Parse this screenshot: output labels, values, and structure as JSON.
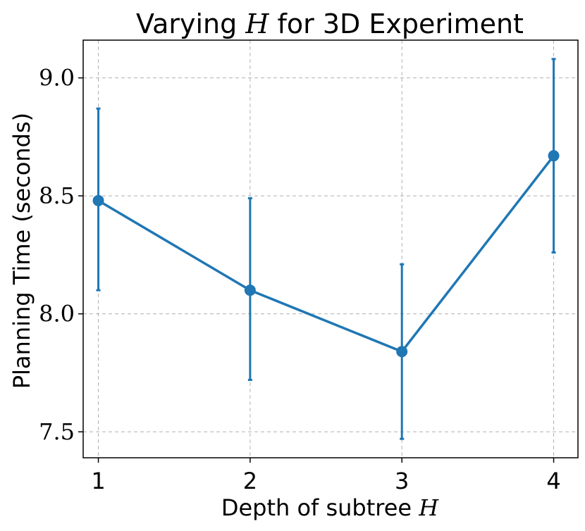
{
  "chart_data": {
    "type": "line",
    "title_prefix": "Varying ",
    "title_var": "H",
    "title_suffix": " for 3D Experiment",
    "xlabel_prefix": "Depth of subtree ",
    "xlabel_var": "H",
    "ylabel": "Planning Time (seconds)",
    "x": [
      1,
      2,
      3,
      4
    ],
    "xtick_labels": [
      "1",
      "2",
      "3",
      "4"
    ],
    "xlim": [
      0.9,
      4.16
    ],
    "ylim": [
      7.39,
      9.16
    ],
    "yticks": [
      7.5,
      8.0,
      8.5,
      9.0
    ],
    "ytick_labels": [
      "7.5",
      "8.0",
      "8.5",
      "9.0"
    ],
    "grid": true,
    "series": [
      {
        "name": "Planning Time",
        "values": [
          8.48,
          8.1,
          7.84,
          8.67
        ],
        "err_low": [
          8.1,
          7.72,
          7.47,
          8.26
        ],
        "err_high": [
          8.87,
          8.49,
          8.21,
          9.08
        ],
        "color": "#1f77b4"
      }
    ]
  }
}
